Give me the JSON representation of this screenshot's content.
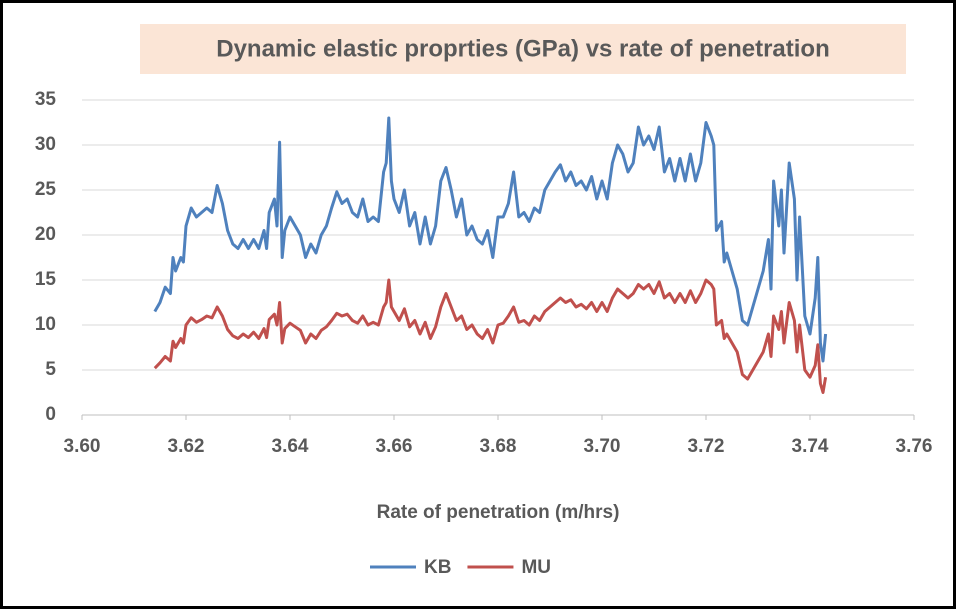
{
  "chart_data": {
    "type": "line",
    "title": "Dynamic elastic proprties (GPa) vs rate of penetration",
    "x_label": "Rate of penetration (m/hrs)",
    "x": [
      3.614,
      3.615,
      3.616,
      3.617,
      3.6175,
      3.618,
      3.619,
      3.6195,
      3.62,
      3.621,
      3.622,
      3.623,
      3.624,
      3.625,
      3.626,
      3.627,
      3.628,
      3.629,
      3.63,
      3.631,
      3.632,
      3.633,
      3.634,
      3.635,
      3.6355,
      3.636,
      3.637,
      3.6375,
      3.638,
      3.6385,
      3.639,
      3.64,
      3.641,
      3.642,
      3.643,
      3.644,
      3.645,
      3.646,
      3.647,
      3.648,
      3.649,
      3.65,
      3.651,
      3.652,
      3.653,
      3.654,
      3.655,
      3.656,
      3.657,
      3.658,
      3.6585,
      3.659,
      3.6595,
      3.66,
      3.661,
      3.662,
      3.663,
      3.664,
      3.665,
      3.666,
      3.667,
      3.668,
      3.669,
      3.67,
      3.671,
      3.672,
      3.673,
      3.674,
      3.675,
      3.676,
      3.677,
      3.678,
      3.679,
      3.68,
      3.681,
      3.682,
      3.683,
      3.684,
      3.685,
      3.686,
      3.687,
      3.688,
      3.689,
      3.69,
      3.691,
      3.692,
      3.693,
      3.694,
      3.695,
      3.696,
      3.697,
      3.698,
      3.699,
      3.7,
      3.701,
      3.702,
      3.703,
      3.704,
      3.705,
      3.706,
      3.707,
      3.708,
      3.709,
      3.71,
      3.711,
      3.712,
      3.713,
      3.714,
      3.715,
      3.716,
      3.717,
      3.718,
      3.719,
      3.72,
      3.721,
      3.7215,
      3.722,
      3.723,
      3.7235,
      3.724,
      3.725,
      3.726,
      3.727,
      3.728,
      3.729,
      3.73,
      3.731,
      3.732,
      3.7325,
      3.733,
      3.734,
      3.7345,
      3.735,
      3.736,
      3.737,
      3.7375,
      3.738,
      3.739,
      3.74,
      3.741,
      3.7415,
      3.742,
      3.7425,
      3.743
    ],
    "series": [
      {
        "name": "KB",
        "color": "#4f81bd",
        "values": [
          11.5,
          12.5,
          14.2,
          13.5,
          17.5,
          16,
          17.5,
          17,
          21,
          23,
          22,
          22.5,
          23,
          22.5,
          25.5,
          23.5,
          20.5,
          19,
          18.5,
          19.5,
          18.5,
          19.5,
          18.5,
          20.5,
          18.5,
          22.5,
          24,
          21,
          30.3,
          17.5,
          20.5,
          22,
          21,
          20,
          17.5,
          19,
          18,
          20,
          21,
          23,
          24.8,
          23.5,
          24,
          22.5,
          22,
          24,
          21.5,
          22,
          21.5,
          27,
          28,
          33,
          26,
          24,
          22.5,
          25,
          21,
          22.5,
          19,
          22,
          19,
          21,
          26,
          27.5,
          25,
          22,
          24,
          20,
          21,
          19.5,
          19,
          20.5,
          17.5,
          22,
          22,
          23.5,
          27,
          22,
          22.5,
          21.5,
          23,
          22.5,
          25,
          26,
          27,
          27.8,
          26,
          27,
          25.5,
          26,
          25,
          26.5,
          24,
          26,
          24,
          28,
          30,
          29,
          27,
          28,
          32,
          30,
          31,
          29.5,
          32,
          27,
          28.5,
          26,
          28.5,
          26,
          29,
          26,
          28,
          32.5,
          31,
          30,
          20.5,
          21.5,
          17,
          18,
          16,
          14,
          10.5,
          10,
          12,
          14,
          16,
          19.5,
          14,
          26,
          21,
          25,
          18,
          28,
          24,
          15,
          22,
          11,
          9,
          13,
          17.5,
          8,
          6,
          9
        ]
      },
      {
        "name": "MU",
        "color": "#c0504d",
        "values": [
          5.2,
          5.8,
          6.5,
          6,
          8.2,
          7.5,
          8.5,
          8,
          10,
          10.8,
          10.3,
          10.6,
          11,
          10.8,
          12,
          11,
          9.5,
          8.8,
          8.5,
          9,
          8.6,
          9.2,
          8.5,
          9.6,
          8.6,
          10.6,
          11.2,
          10,
          12.5,
          8,
          9.6,
          10.2,
          9.8,
          9.4,
          8,
          9,
          8.5,
          9.4,
          9.8,
          10.5,
          11.3,
          11,
          11.2,
          10.5,
          10.2,
          11,
          10,
          10.3,
          10,
          12,
          12.5,
          15,
          12,
          11.5,
          10.5,
          11.8,
          9.8,
          10.5,
          9,
          10.3,
          8.5,
          9.8,
          12,
          13.5,
          12,
          10.5,
          11,
          9.5,
          10,
          9,
          8.5,
          9.5,
          8,
          10,
          10.2,
          11,
          12,
          10.3,
          10.5,
          10,
          11,
          10.5,
          11.5,
          12,
          12.5,
          13,
          12.5,
          12.8,
          12,
          12.3,
          11.8,
          12.5,
          11.5,
          12.5,
          11.5,
          13,
          14,
          13.5,
          13,
          13.5,
          14.5,
          14,
          14.5,
          13.5,
          14.8,
          13,
          13.5,
          12.5,
          13.5,
          12.5,
          13.8,
          12.5,
          13.5,
          15,
          14.5,
          14,
          10,
          10.5,
          8.5,
          9,
          8,
          7,
          4.5,
          4,
          5,
          6,
          7,
          9,
          6.5,
          11,
          9.5,
          11.5,
          8,
          12.5,
          10.5,
          7,
          10,
          5,
          4.2,
          5.5,
          7.8,
          3.5,
          2.5,
          4.2
        ]
      }
    ],
    "xlim": [
      3.6,
      3.76
    ],
    "xticks": [
      {
        "value": 3.6,
        "label": "3.60"
      },
      3.62,
      3.64,
      3.66,
      3.68,
      {
        "value": 3.7,
        "label": "3.70"
      },
      3.72,
      3.74,
      3.76
    ],
    "ylim": [
      0,
      35
    ],
    "yticks": [
      0,
      5,
      10,
      15,
      20,
      25,
      30,
      35
    ],
    "grid": true,
    "legend": "bottom"
  }
}
